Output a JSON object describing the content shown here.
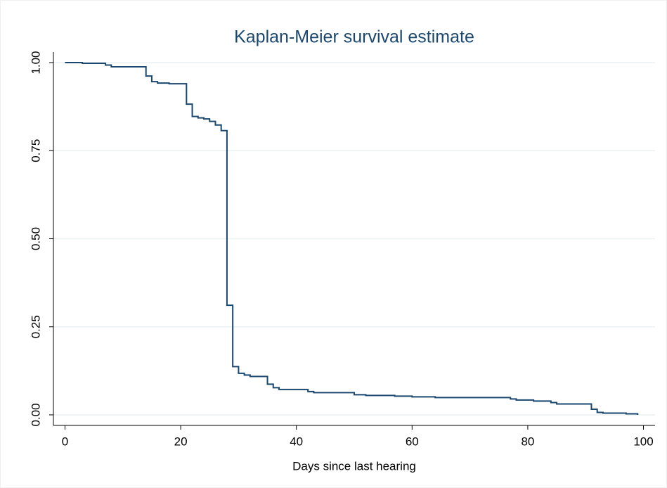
{
  "chart_data": {
    "type": "line",
    "step": "post",
    "title": "Kaplan-Meier survival estimate",
    "x_label": "Days since last hearing",
    "x": [
      0,
      3,
      7,
      8,
      14,
      15,
      16,
      18,
      21,
      22,
      23,
      24,
      25,
      26,
      27,
      28,
      29,
      30,
      31,
      32,
      35,
      36,
      37,
      42,
      43,
      50,
      52,
      57,
      60,
      64,
      77,
      78,
      81,
      84,
      85,
      91,
      92,
      93,
      97,
      99
    ],
    "values": [
      1.0,
      0.998,
      0.993,
      0.988,
      0.962,
      0.946,
      0.942,
      0.94,
      0.882,
      0.847,
      0.843,
      0.84,
      0.833,
      0.823,
      0.807,
      0.311,
      0.137,
      0.118,
      0.113,
      0.109,
      0.087,
      0.077,
      0.072,
      0.066,
      0.063,
      0.057,
      0.055,
      0.053,
      0.051,
      0.049,
      0.045,
      0.042,
      0.039,
      0.035,
      0.031,
      0.016,
      0.007,
      0.005,
      0.003,
      0.0
    ],
    "color": "#1a476f",
    "xlim": [
      -2,
      102
    ],
    "ylim": [
      -0.03,
      1.03
    ],
    "xticks": [
      0,
      20,
      40,
      60,
      80,
      100
    ],
    "yticks": [
      {
        "value": 0,
        "label": "0.00"
      },
      {
        "value": 0.25,
        "label": "0.25"
      },
      {
        "value": 0.5,
        "label": "0.50"
      },
      {
        "value": 0.75,
        "label": "0.75"
      },
      {
        "value": 1,
        "label": "1.00"
      }
    ],
    "grid": true
  }
}
